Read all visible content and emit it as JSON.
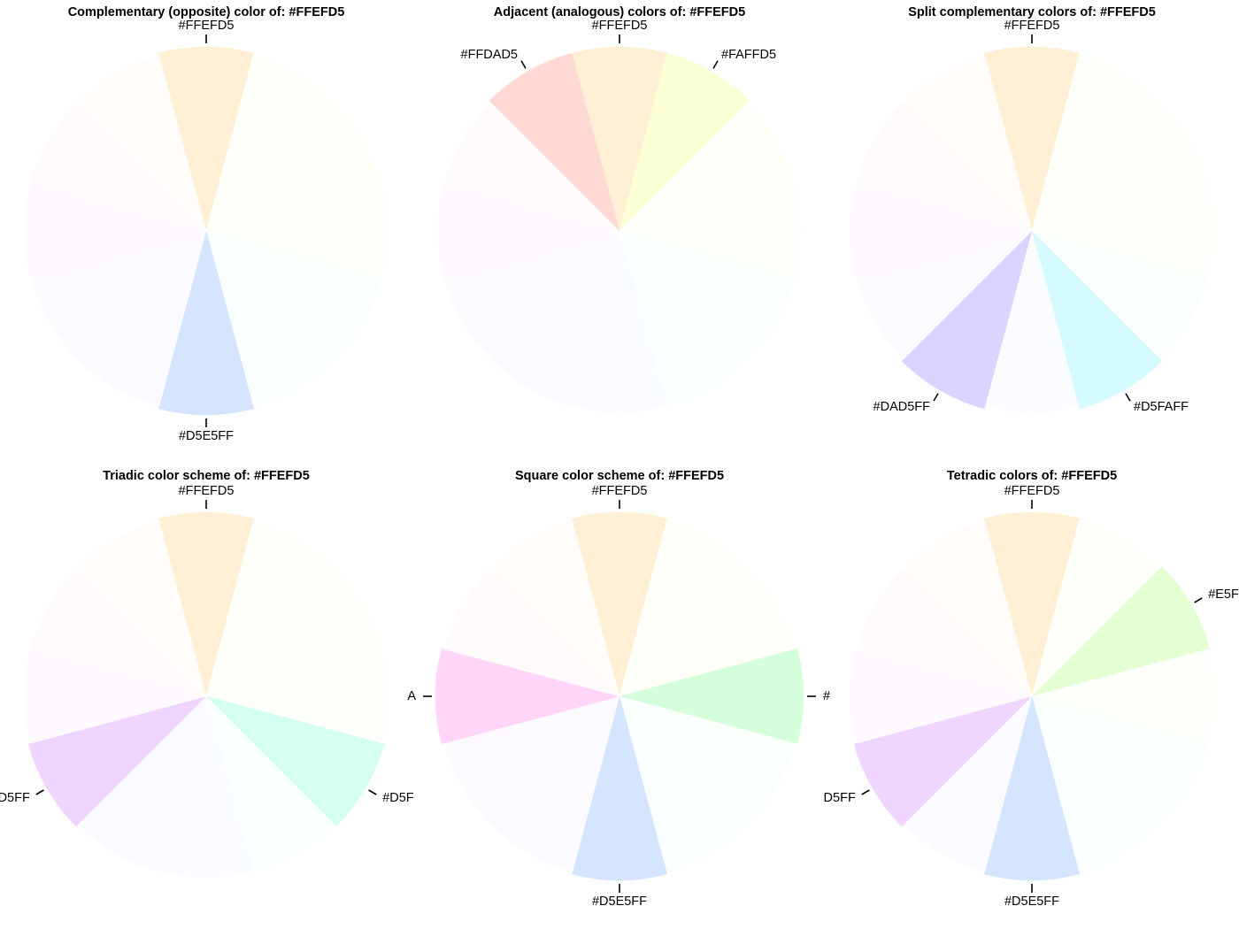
{
  "chart_data": [
    {
      "type": "pie",
      "title": "Complementary (opposite) color of:  #FFEFD5",
      "slices": [
        "#FFEFD5",
        "#FFFFFA",
        "#FFFFFA",
        "#FCFFFA",
        "#FAFFFC",
        "#FAFFFF",
        "#D5E5FF",
        "#FAFAFF",
        "#FCFAFF",
        "#FFFAFF",
        "#FFFAFC",
        "#FFFCFA"
      ],
      "labels": {
        "0": "#FFEFD5",
        "6": "#D5E5FF"
      },
      "highlighted": [
        0,
        6
      ]
    },
    {
      "type": "pie",
      "title": "Adjacent (analogous) colors of:  #FFEFD5",
      "slices": [
        "#FFEFD5",
        "#FAFFD5",
        "#FFFFFA",
        "#FCFFFA",
        "#FAFFFC",
        "#FAFFFF",
        "#FAFCFF",
        "#FAFAFF",
        "#FCFAFF",
        "#FFFAFF",
        "#FFFAFC",
        "#FFDAD5"
      ],
      "labels": {
        "0": "#FFEFD5",
        "1": "#FAFFD5",
        "11": "#FFDAD5"
      },
      "highlighted": [
        0,
        1,
        11
      ]
    },
    {
      "type": "pie",
      "title": "Split complementary colors of:  #FFEFD5",
      "slices": [
        "#FFEFD5",
        "#FFFFFA",
        "#FFFFFA",
        "#FCFFFA",
        "#FAFFFC",
        "#D5FAFF",
        "#FAFCFF",
        "#DAD5FF",
        "#FCFAFF",
        "#FFFAFF",
        "#FFFAFC",
        "#FFFCFA"
      ],
      "labels": {
        "0": "#FFEFD5",
        "5": "#D5FAFF",
        "7": "#DAD5FF"
      },
      "highlighted": [
        0,
        5,
        7
      ]
    },
    {
      "type": "pie",
      "title": "Triadic color scheme of:  #FFEFD5",
      "slices": [
        "#FFEFD5",
        "#FFFFFA",
        "#FFFFFA",
        "#FCFFFA",
        "#D5FFEF",
        "#FAFFFF",
        "#FAFCFF",
        "#FAFAFF",
        "#EFD5FF",
        "#FFFAFF",
        "#FFFAFC",
        "#FFFCFA"
      ],
      "labels": {
        "0": "#FFEFD5",
        "4": "#D5F",
        "8": "D5FF"
      },
      "highlighted": [
        0,
        4,
        8
      ]
    },
    {
      "type": "pie",
      "title": "Square color scheme of:  #FFEFD5",
      "slices": [
        "#FFEFD5",
        "#FFFFFA",
        "#FFFFFA",
        "#D5FFDA",
        "#FAFFFC",
        "#FAFFFF",
        "#D5E5FF",
        "#FAFAFF",
        "#FCFAFF",
        "#FFD5FA",
        "#FFFAFC",
        "#FFFCFA"
      ],
      "labels": {
        "0": "#FFEFD5",
        "3": "#",
        "6": "#D5E5FF",
        "9": "A"
      },
      "highlighted": [
        0,
        3,
        6,
        9
      ]
    },
    {
      "type": "pie",
      "title": "Tetradic colors of:  #FFEFD5",
      "slices": [
        "#FFEFD5",
        "#FFFFFA",
        "#E5FFD5",
        "#FCFFFA",
        "#FAFFFC",
        "#FAFFFF",
        "#D5E5FF",
        "#FAFAFF",
        "#EFD5FF",
        "#FFFAFF",
        "#FFFAFC",
        "#FFFCFA"
      ],
      "labels": {
        "0": "#FFEFD5",
        "2": "#E5F",
        "6": "#D5E5FF",
        "8": "D5FF"
      },
      "highlighted": [
        0,
        2,
        6,
        8
      ]
    }
  ]
}
